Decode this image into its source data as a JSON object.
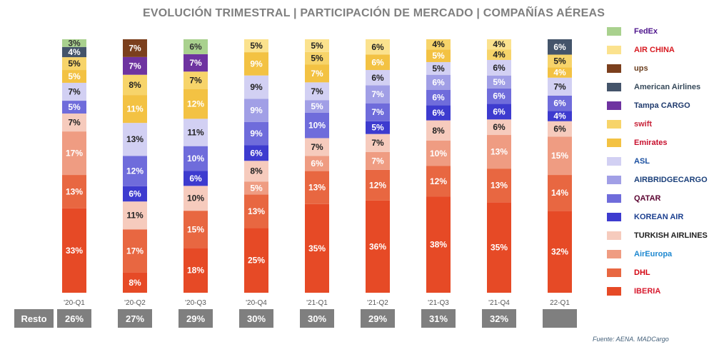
{
  "chart_data": {
    "type": "bar",
    "stacked": true,
    "title": "EVOLUCIÓN TRIMESTRAL | PARTICIPACIÓN DE MERCADO | COMPAÑÍAS AÉREAS",
    "categories": [
      "'20-Q1",
      "'20-Q2",
      "'20-Q3",
      "'20-Q4",
      "'21-Q1",
      "'21-Q2",
      "'21-Q3",
      "'21-Q4",
      "22-Q1"
    ],
    "series": [
      {
        "name": "Iberia",
        "color": "#e64a26",
        "text": "#fff",
        "values": [
          33,
          8,
          18,
          25,
          35,
          36,
          38,
          35,
          32
        ]
      },
      {
        "name": "DHL",
        "color": "#e86741",
        "text": "#fff",
        "values": [
          13,
          17,
          15,
          13,
          13,
          12,
          12,
          13,
          14
        ]
      },
      {
        "name": "AirEuropa",
        "color": "#ef9c82",
        "text": "#fff",
        "values": [
          17,
          null,
          null,
          5,
          6,
          7,
          10,
          13,
          15
        ]
      },
      {
        "name": "Turkish Airlines",
        "color": "#f6cbbd",
        "text": "#222",
        "values": [
          7,
          11,
          10,
          8,
          7,
          7,
          8,
          6,
          6
        ]
      },
      {
        "name": "Korean Air",
        "color": "#3d3bcf",
        "text": "#fff",
        "values": [
          null,
          6,
          6,
          6,
          null,
          5,
          6,
          6,
          4
        ]
      },
      {
        "name": "Qatar Airways",
        "color": "#6f6cdb",
        "text": "#fff",
        "values": [
          5,
          12,
          10,
          9,
          10,
          7,
          6,
          6,
          6
        ]
      },
      {
        "name": "AirBridgeCargo",
        "color": "#a19fe6",
        "text": "#fff",
        "values": [
          null,
          null,
          null,
          9,
          5,
          7,
          6,
          5,
          null
        ]
      },
      {
        "name": "ASL",
        "color": "#d2d0f3",
        "text": "#222",
        "values": [
          7,
          13,
          11,
          9,
          7,
          6,
          5,
          6,
          7
        ]
      },
      {
        "name": "Emirates",
        "color": "#f3c243",
        "text": "#fff",
        "values": [
          5,
          11,
          12,
          9,
          7,
          6,
          5,
          null,
          4
        ]
      },
      {
        "name": "Swift",
        "color": "#f7d46a",
        "text": "#222",
        "values": [
          5,
          8,
          7,
          null,
          5,
          null,
          4,
          4,
          5
        ]
      },
      {
        "name": "Tampa Cargo",
        "color": "#6e33a0",
        "text": "#fff",
        "values": [
          null,
          7,
          7,
          null,
          null,
          null,
          null,
          null,
          null
        ]
      },
      {
        "name": "American Airlines",
        "color": "#44546a",
        "text": "#fff",
        "values": [
          4,
          null,
          null,
          null,
          null,
          null,
          null,
          null,
          6
        ]
      },
      {
        "name": "UPS",
        "color": "#7b3f1d",
        "text": "#fff",
        "values": [
          null,
          7,
          null,
          null,
          null,
          null,
          null,
          null,
          null
        ]
      },
      {
        "name": "Air China",
        "color": "#fbe28e",
        "text": "#222",
        "values": [
          null,
          null,
          null,
          5,
          5,
          6,
          null,
          4,
          null
        ]
      },
      {
        "name": "FedEx",
        "color": "#a9d18e",
        "text": "#333",
        "values": [
          3,
          null,
          6,
          null,
          null,
          null,
          null,
          null,
          null
        ]
      }
    ],
    "resto": {
      "label": "Resto",
      "values": [
        "26%",
        "27%",
        "29%",
        "30%",
        "30%",
        "29%",
        "31%",
        "32%",
        ""
      ]
    },
    "legend_position": "right",
    "source": "Fuente: AENA. MADCargo"
  },
  "legend": [
    {
      "name": "FedEx",
      "color": "#a9d18e",
      "logo_color": "#4d148c"
    },
    {
      "name": "AIR CHINA",
      "color": "#fbe28e",
      "logo_color": "#d71920"
    },
    {
      "name": "ups",
      "color": "#7b3f1d",
      "logo_color": "#6b3e1e"
    },
    {
      "name": "American Airlines",
      "color": "#44546a",
      "logo_color": "#36495a"
    },
    {
      "name": "Tampa CARGO",
      "color": "#6e33a0",
      "logo_color": "#1f3a6d"
    },
    {
      "name": "swift",
      "color": "#f7d46a",
      "logo_color": "#c8243a"
    },
    {
      "name": "Emirates",
      "color": "#f3c243",
      "logo_color": "#c8102e"
    },
    {
      "name": "ASL",
      "color": "#d2d0f3",
      "logo_color": "#1a4fa0"
    },
    {
      "name": "AIRBRIDGECARGO",
      "color": "#a19fe6",
      "logo_color": "#1a3f7a"
    },
    {
      "name": "QATAR",
      "color": "#6f6cdb",
      "logo_color": "#5c0632"
    },
    {
      "name": "KOREAN AIR",
      "color": "#3d3bcf",
      "logo_color": "#1b3f8f"
    },
    {
      "name": "TURKISH AIRLINES",
      "color": "#f6cbbd",
      "logo_color": "#222"
    },
    {
      "name": "AirEuropa",
      "color": "#ef9c82",
      "logo_color": "#1e88d0"
    },
    {
      "name": "DHL",
      "color": "#e86741",
      "logo_color": "#d40511"
    },
    {
      "name": "IBERIA",
      "color": "#e64a26",
      "logo_color": "#d7192d"
    }
  ]
}
